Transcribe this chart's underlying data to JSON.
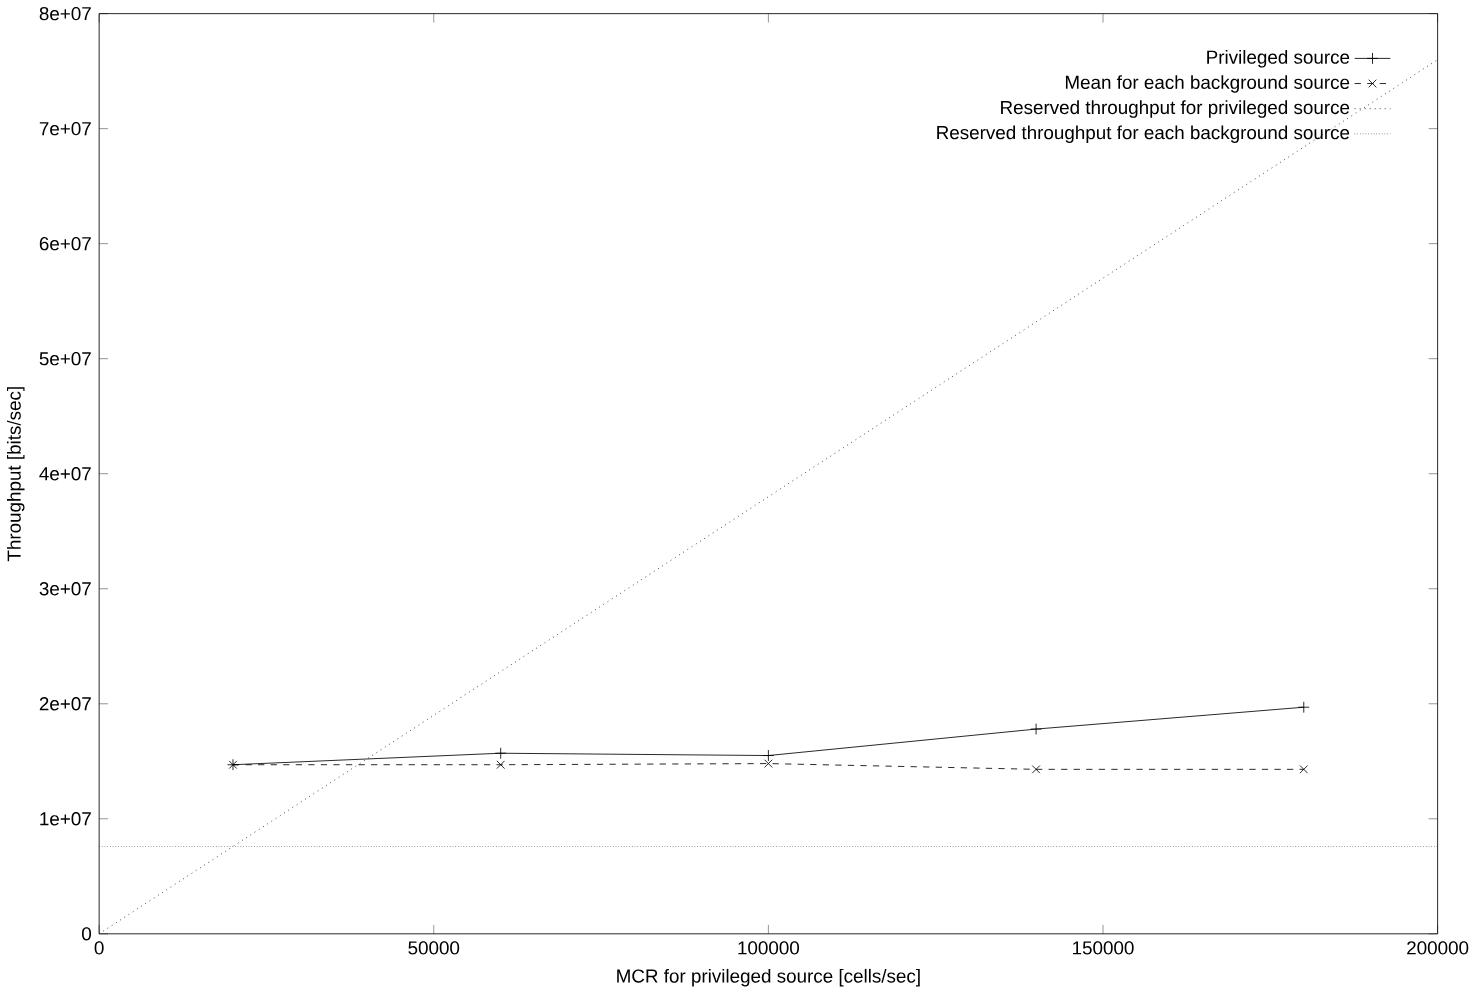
{
  "chart_data": {
    "type": "line",
    "xlabel": "MCR for privileged source [cells/sec]",
    "ylabel": "Throughput [bits/sec]",
    "xlim": [
      0,
      200000
    ],
    "xticks": [
      0,
      50000,
      100000,
      150000,
      200000
    ],
    "ylim": [
      0,
      80000000
    ],
    "yticks": [
      {
        "value": 0,
        "label": "0"
      },
      {
        "value": 10000000,
        "label": "1e+07"
      },
      {
        "value": 20000000,
        "label": "2e+07"
      },
      {
        "value": 30000000,
        "label": "3e+07"
      },
      {
        "value": 40000000,
        "label": "4e+07"
      },
      {
        "value": 50000000,
        "label": "5e+07"
      },
      {
        "value": 60000000,
        "label": "6e+07"
      },
      {
        "value": 70000000,
        "label": "7e+07"
      },
      {
        "value": 80000000,
        "label": "8e+07"
      }
    ],
    "grid": false,
    "legend": "top right",
    "series": [
      {
        "name": "Privileged source",
        "color": "#000000",
        "marker": "cross",
        "line_style": "solid",
        "x": [
          20000,
          60000,
          100000,
          140000,
          180000
        ],
        "values": [
          14700000,
          15700000,
          15500000,
          17800000,
          19700000
        ]
      },
      {
        "name": "Mean for each background source",
        "color": "#000000",
        "marker": "x",
        "line_style": "dashed",
        "x": [
          20000,
          60000,
          100000,
          140000,
          180000
        ],
        "values": [
          14700000,
          14700000,
          14800000,
          14300000,
          14300000
        ]
      },
      {
        "name": "Reserved throughput for privileged source",
        "color": "#000000",
        "marker": "none",
        "line_style": "dotted",
        "x": [
          0,
          200000
        ],
        "values": [
          0,
          76000000
        ]
      },
      {
        "name": "Reserved throughput for each background source",
        "color": "#000000",
        "marker": "none",
        "line_style": "densely dotted",
        "x": [
          0,
          200000
        ],
        "values": [
          7600000,
          7600000
        ]
      }
    ]
  }
}
